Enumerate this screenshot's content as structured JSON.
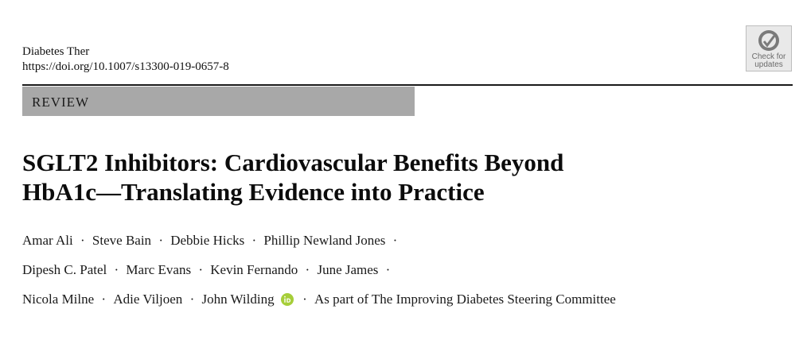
{
  "header": {
    "journal": "Diabetes Ther",
    "doi": "https://doi.org/10.1007/s13300-019-0657-8",
    "badge_line1": "Check for",
    "badge_line2": "updates"
  },
  "section_label": "REVIEW",
  "title_line1": "SGLT2 Inhibitors: Cardiovascular Benefits Beyond",
  "title_line2": "HbA1c—Translating Evidence into Practice",
  "authors": {
    "line1": [
      "Amar Ali",
      "Steve Bain",
      "Debbie Hicks",
      "Phillip Newland Jones"
    ],
    "line2": [
      "Dipesh C. Patel",
      "Marc Evans",
      "Kevin Fernando",
      "June James"
    ],
    "line3": [
      "Nicola Milne",
      "Adie Viljoen",
      "John Wilding",
      "As part of The Improving Diabetes Steering Committee"
    ],
    "separator": "·"
  },
  "colors": {
    "orcid": "#a6ce39",
    "section_bar": "#a8a8a8",
    "rule": "#1a1a1a"
  },
  "icons": {
    "badge": "check-for-updates-icon",
    "orcid": "orcid-icon"
  }
}
